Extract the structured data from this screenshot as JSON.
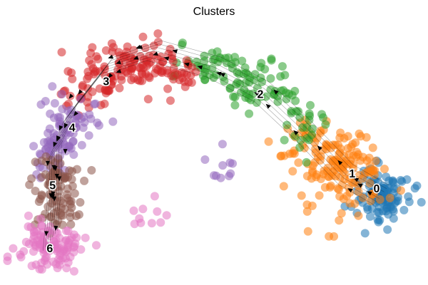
{
  "chart_data": {
    "type": "scatter",
    "title": "Clusters",
    "xlim": [
      0,
      10
    ],
    "ylim": [
      0,
      6.5
    ],
    "grid": false,
    "axes_visible": false,
    "legend": "on data",
    "streamlines": true,
    "clusters": [
      {
        "name": "0",
        "color": "#1f77b4",
        "label_pos": [
          9.07,
          2.14
        ],
        "blobs": [
          [
            9.2,
            2.05,
            0.35,
            0.35,
            110
          ]
        ]
      },
      {
        "name": "1",
        "color": "#ff7f0e",
        "label_pos": [
          8.46,
          2.5
        ],
        "blobs": [
          [
            8.3,
            2.55,
            0.5,
            0.5,
            130
          ],
          [
            7.4,
            3.3,
            0.35,
            0.3,
            30
          ],
          [
            6.5,
            2.7,
            0.3,
            0.4,
            8
          ]
        ]
      },
      {
        "name": "2",
        "color": "#2ca02c",
        "label_pos": [
          6.16,
          4.43
        ],
        "blobs": [
          [
            4.9,
            5.1,
            0.6,
            0.25,
            45
          ],
          [
            6.2,
            4.55,
            0.45,
            0.3,
            50
          ],
          [
            7.1,
            3.8,
            0.3,
            0.3,
            25
          ]
        ]
      },
      {
        "name": "3",
        "color": "#d62728",
        "label_pos": [
          2.3,
          4.74
        ],
        "blobs": [
          [
            3.1,
            5.25,
            0.55,
            0.3,
            70
          ],
          [
            2.0,
            4.7,
            0.45,
            0.35,
            60
          ],
          [
            3.9,
            5.05,
            0.35,
            0.25,
            30
          ]
        ]
      },
      {
        "name": "4",
        "color": "#9467bd",
        "label_pos": [
          1.45,
          3.62
        ],
        "blobs": [
          [
            1.35,
            3.8,
            0.35,
            0.4,
            60
          ],
          [
            1.0,
            3.1,
            0.3,
            0.3,
            40
          ],
          [
            5.2,
            2.65,
            0.25,
            0.2,
            10
          ]
        ]
      },
      {
        "name": "5",
        "color": "#8c564b",
        "label_pos": [
          0.96,
          2.22
        ],
        "blobs": [
          [
            1.05,
            2.35,
            0.3,
            0.3,
            55
          ],
          [
            1.05,
            1.65,
            0.25,
            0.3,
            40
          ]
        ]
      },
      {
        "name": "6",
        "color": "#e377c2",
        "label_pos": [
          0.89,
          0.69
        ],
        "blobs": [
          [
            0.9,
            0.75,
            0.4,
            0.3,
            110
          ],
          [
            3.4,
            1.5,
            0.3,
            0.3,
            10
          ]
        ]
      }
    ]
  }
}
